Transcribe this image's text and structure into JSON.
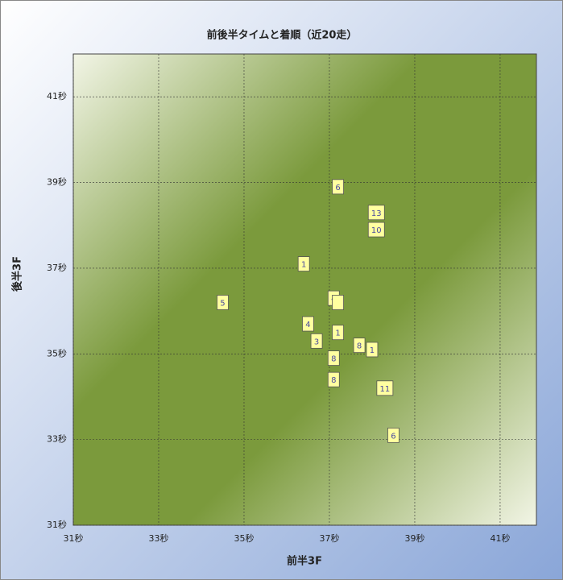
{
  "chart_data": {
    "type": "scatter",
    "title": "前後半タイムと着順（近20走）",
    "x_label": "前半3F",
    "y_label": "後半3F",
    "x": [
      37.2,
      38.1,
      38.1,
      36.4,
      34.5,
      37.1,
      37.2,
      36.5,
      37.2,
      36.7,
      37.7,
      38.0,
      37.1,
      37.1,
      38.3,
      38.5
    ],
    "values": [
      38.9,
      38.3,
      37.9,
      37.1,
      36.2,
      36.3,
      36.2,
      35.7,
      35.5,
      35.3,
      35.2,
      35.1,
      34.9,
      34.4,
      34.2,
      33.1
    ],
    "labels": [
      6,
      13,
      10,
      1,
      5,
      4,
      null,
      4,
      1,
      3,
      8,
      1,
      8,
      8,
      11,
      6
    ],
    "xlim": [
      31,
      41.85
    ],
    "ylim": [
      31,
      42
    ],
    "xticks": [
      {
        "value": 31,
        "label": "31秒"
      },
      {
        "value": 33,
        "label": "33秒"
      },
      {
        "value": 35,
        "label": "35秒"
      },
      {
        "value": 37,
        "label": "37秒"
      },
      {
        "value": 39,
        "label": "39秒"
      },
      {
        "value": 41,
        "label": "41秒"
      }
    ],
    "yticks": [
      {
        "value": 31,
        "label": "31秒"
      },
      {
        "value": 33,
        "label": "33秒"
      },
      {
        "value": 35,
        "label": "35秒"
      },
      {
        "value": 37,
        "label": "37秒"
      },
      {
        "value": 39,
        "label": "39秒"
      },
      {
        "value": 41,
        "label": "41秒"
      }
    ],
    "grid": true,
    "color": "#ffffa0"
  }
}
